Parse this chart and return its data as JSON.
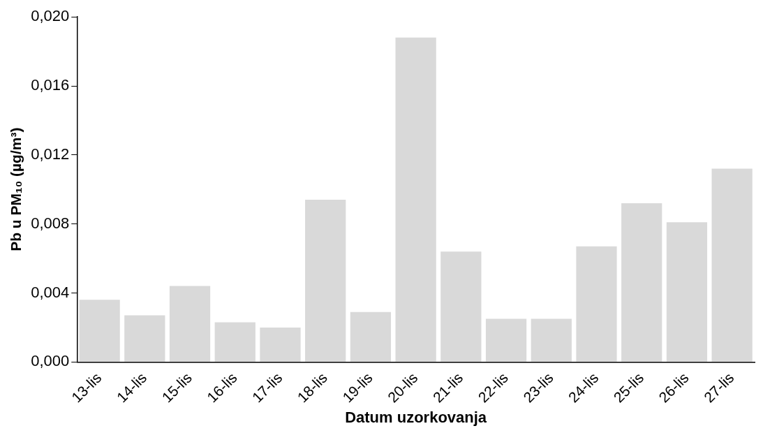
{
  "chart_data": {
    "type": "bar",
    "xlabel": "Datum uzorkovanja",
    "ylabel": "Pb u PM₁₀ (µg/m³)",
    "categories": [
      "13-lis",
      "14-lis",
      "15-lis",
      "16-lis",
      "17-lis",
      "18-lis",
      "19-lis",
      "20-lis",
      "21-lis",
      "22-lis",
      "23-lis",
      "24-lis",
      "25-lis",
      "26-lis",
      "27-lis"
    ],
    "values": [
      0.0036,
      0.0027,
      0.0044,
      0.0023,
      0.002,
      0.0094,
      0.0029,
      0.0188,
      0.0064,
      0.0025,
      0.0025,
      0.0067,
      0.0092,
      0.0081,
      0.0112
    ],
    "color": "#d9d9d9",
    "ylim": [
      0,
      0.02
    ],
    "yticks": [
      {
        "value": 0,
        "label": "0,000"
      },
      {
        "value": 0.004,
        "label": "0,004"
      },
      {
        "value": 0.008,
        "label": "0,008"
      },
      {
        "value": 0.012,
        "label": "0,012"
      },
      {
        "value": 0.016,
        "label": "0,016"
      },
      {
        "value": 0.02,
        "label": "0,020"
      }
    ],
    "grid": false,
    "legend": false
  }
}
